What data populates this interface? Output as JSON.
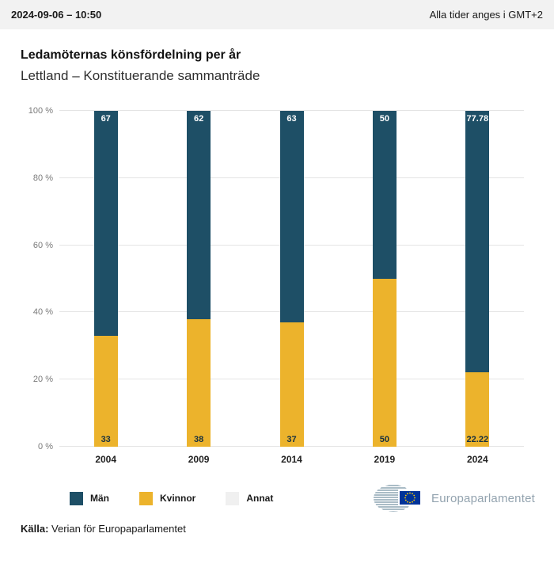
{
  "header": {
    "datetime": "2024-09-06 – 10:50",
    "timezone_note": "Alla tider anges i GMT+2"
  },
  "title": "Ledamöternas könsfördelning per år",
  "subtitle": "Lettland – Konstituerande sammanträde",
  "chart_data": {
    "type": "bar",
    "stacked": true,
    "categories": [
      "2004",
      "2009",
      "2014",
      "2019",
      "2024"
    ],
    "series": [
      {
        "name": "Män",
        "color": "#1e4f66",
        "values": [
          67,
          62,
          63,
          50,
          77.78
        ],
        "labels": [
          "67",
          "62",
          "63",
          "50",
          "77.78"
        ]
      },
      {
        "name": "Kvinnor",
        "color": "#ecb32c",
        "values": [
          33,
          38,
          37,
          50,
          22.22
        ],
        "labels": [
          "33",
          "38",
          "37",
          "50",
          "22.22"
        ]
      },
      {
        "name": "Annat",
        "color": "#f0f0f0",
        "values": [
          0,
          0,
          0,
          0,
          0
        ],
        "labels": [
          "",
          "",
          "",
          "",
          ""
        ]
      }
    ],
    "title": "Ledamöternas könsfördelning per år",
    "xlabel": "",
    "ylabel": "",
    "ylim": [
      0,
      100
    ],
    "ytick_values": [
      0,
      20,
      40,
      60,
      80,
      100
    ],
    "yticks": [
      "0 %",
      "20 %",
      "40 %",
      "60 %",
      "80 %",
      "100 %"
    ],
    "grid": true,
    "legend_position": "bottom"
  },
  "legend": {
    "items": [
      {
        "label": "Män",
        "color": "#1e4f66"
      },
      {
        "label": "Kvinnor",
        "color": "#ecb32c"
      },
      {
        "label": "Annat",
        "color": "#f0f0f0"
      }
    ]
  },
  "footer": {
    "logo_text": "Europaparlamentet",
    "source_label": "Källa:",
    "source_text": " Verian för Europaparlamentet"
  },
  "colors": {
    "men": "#1e4f66",
    "women": "#ecb32c",
    "other": "#f0f0f0",
    "eu_flag_blue": "#003399",
    "eu_star_yellow": "#ffcc00"
  }
}
